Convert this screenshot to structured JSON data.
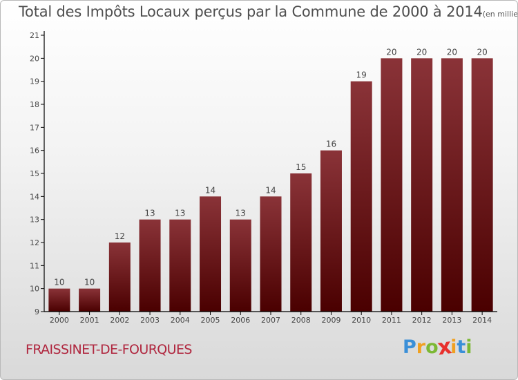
{
  "chart_data": {
    "type": "bar",
    "title": "Total des Impôts Locaux perçus par la Commune de 2000 à 2014",
    "unit_note": "(en milliers d'€)",
    "categories": [
      "2000",
      "2001",
      "2002",
      "2003",
      "2004",
      "2005",
      "2006",
      "2007",
      "2008",
      "2009",
      "2010",
      "2011",
      "2012",
      "2013",
      "2014"
    ],
    "values": [
      10,
      10,
      12,
      13,
      13,
      14,
      13,
      14,
      15,
      16,
      19,
      20,
      20,
      20,
      20
    ],
    "ylim": [
      9,
      21
    ],
    "yticks": [
      "9",
      "10",
      "11",
      "12",
      "13",
      "14",
      "15",
      "16",
      "17",
      "18",
      "19",
      "20",
      "21"
    ],
    "xlabel": "",
    "ylabel": "",
    "colors": {
      "bar_top": "#8a3338",
      "bar_bottom": "#4a0000",
      "axis": "#000000",
      "label": "#444444"
    }
  },
  "footer": {
    "commune": "FRAISSINET-DE-FOURQUES",
    "logo_letters": [
      "P",
      "r",
      "o",
      "x",
      "i",
      "t",
      "i"
    ],
    "logo_colors": [
      "#3a8fd8",
      "#f0a020",
      "#7cb834",
      "#e8302c",
      "#f0a020",
      "#3a8fd8",
      "#7cb834"
    ]
  }
}
